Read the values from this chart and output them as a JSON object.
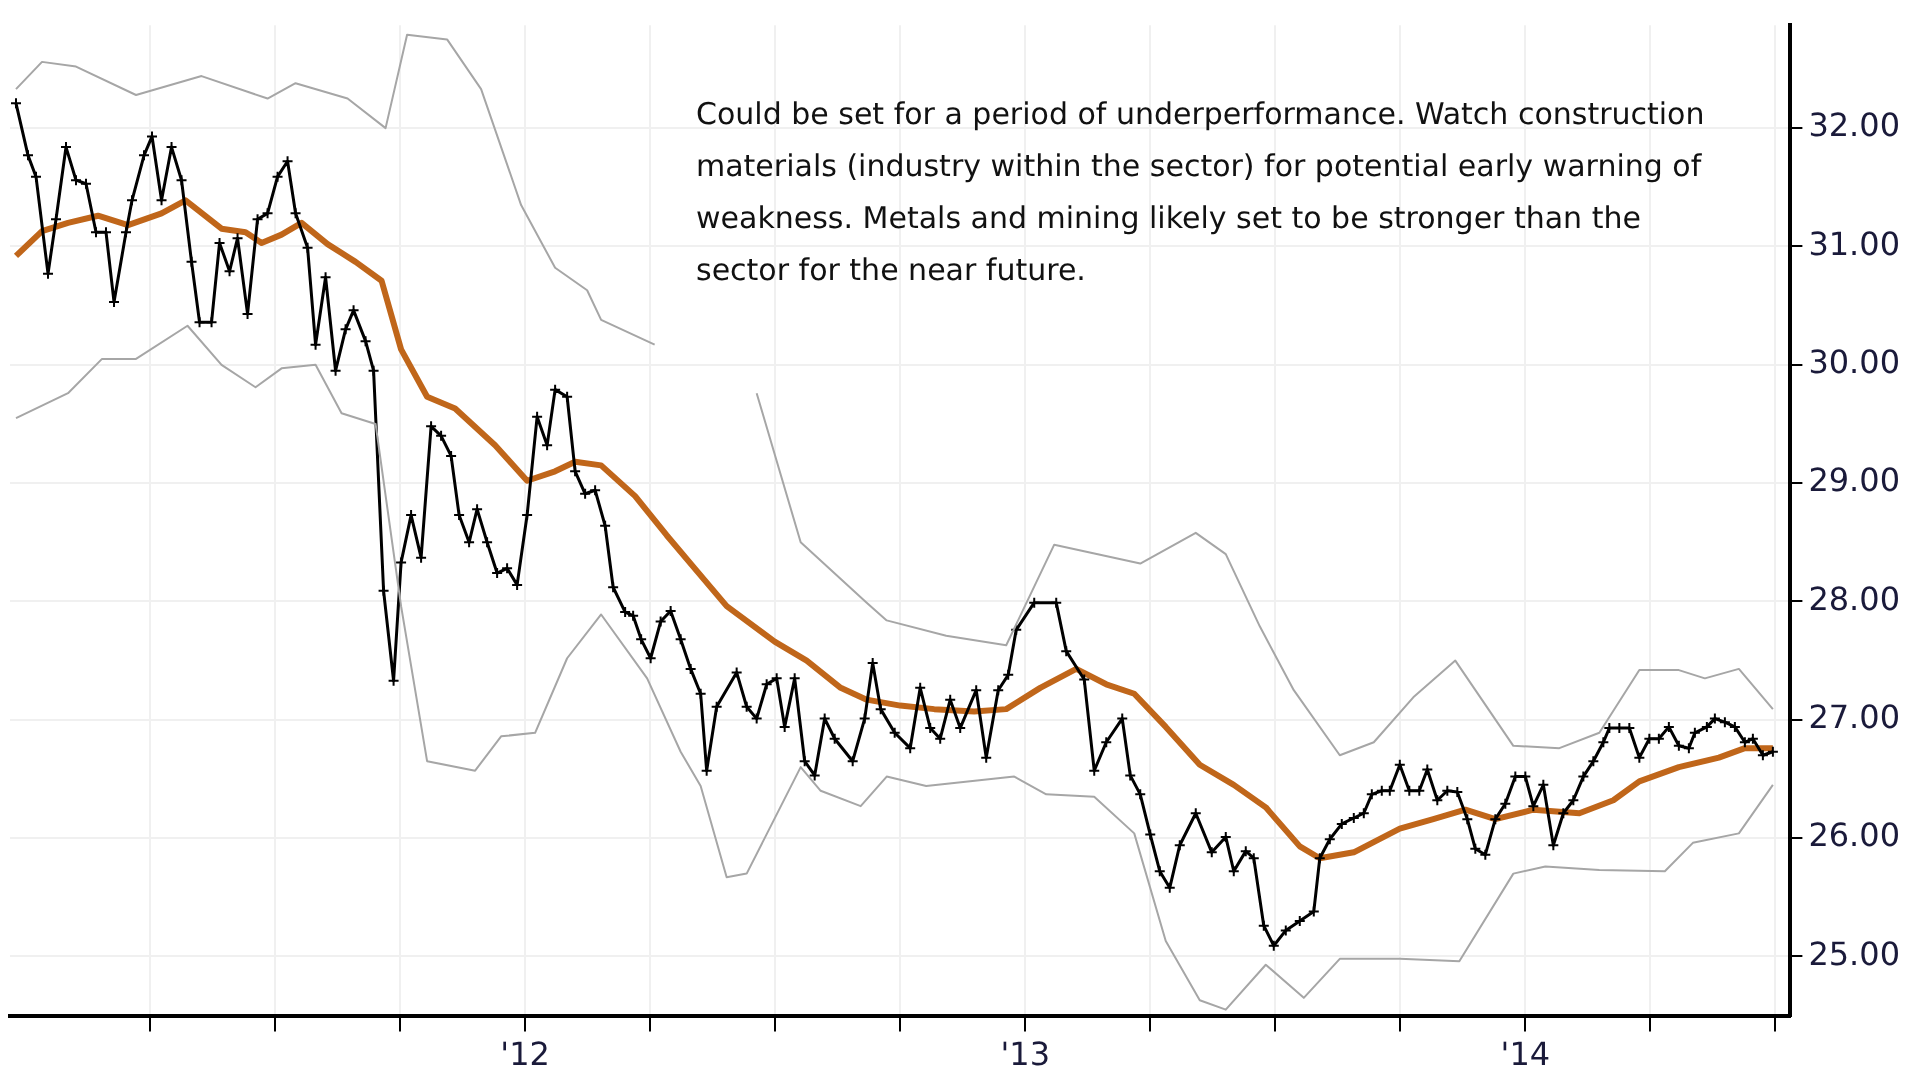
{
  "chart_data": {
    "type": "line",
    "annotations": [
      "Could be set for a period of underperformance. Watch construction materials (industry within the sector) for potential early warning of weakness. Metals and mining likely set to be stronger than the sector for the near future."
    ],
    "series": [
      {
        "type": "line",
        "color": "#a6a6a6",
        "marker": "none",
        "x": [
          2010.982,
          2011.034,
          2011.102,
          2011.222,
          2011.353,
          2011.485,
          2011.541,
          2011.645,
          2011.721,
          2011.764,
          2011.844,
          2011.912,
          2011.992,
          2012.06,
          2012.124,
          2012.152,
          2012.259,
          2012.351,
          2012.463,
          2012.551,
          2012.683,
          2012.723,
          2012.842,
          2012.962,
          2013.058,
          2013.23,
          2013.341,
          2013.401,
          2013.469,
          2013.537,
          2013.629,
          2013.697,
          2013.776,
          2013.86,
          2013.976,
          2014.068,
          2014.148,
          2014.228,
          2014.307,
          2014.359,
          2014.427,
          2014.495
        ],
        "values": [
          32.33,
          32.56,
          32.52,
          32.28,
          32.44,
          32.25,
          32.38,
          32.25,
          32.0,
          32.79,
          32.75,
          32.33,
          31.35,
          30.82,
          30.63,
          30.38,
          30.17,
          null,
          29.76,
          28.5,
          27.99,
          27.84,
          27.71,
          27.63,
          28.48,
          28.32,
          28.58,
          28.4,
          27.79,
          27.25,
          26.7,
          26.81,
          27.19,
          27.5,
          26.78,
          26.76,
          26.89,
          27.42,
          27.42,
          27.35,
          27.43,
          27.09
        ]
      },
      {
        "type": "line",
        "color": "#a6a6a6",
        "marker": "none",
        "x": [
          2010.982,
          2011.086,
          2011.154,
          2011.222,
          2011.325,
          2011.393,
          2011.461,
          2011.513,
          2011.581,
          2011.633,
          2011.701,
          2011.752,
          2011.804,
          2011.9,
          2011.952,
          2012.02,
          2012.084,
          2012.152,
          2012.244,
          2012.311,
          2012.351,
          2012.403,
          2012.443,
          2012.551,
          2012.591,
          2012.671,
          2012.723,
          2012.802,
          2012.978,
          2013.042,
          2013.138,
          2013.218,
          2013.281,
          2013.349,
          2013.401,
          2013.481,
          2013.557,
          2013.629,
          2013.749,
          2013.868,
          2013.976,
          2014.04,
          2014.148,
          2014.279,
          2014.335,
          2014.427,
          2014.495
        ],
        "values": [
          29.55,
          29.76,
          30.05,
          30.05,
          30.33,
          30.0,
          29.81,
          29.97,
          30.0,
          29.59,
          29.5,
          27.96,
          26.65,
          26.57,
          26.86,
          26.89,
          27.52,
          27.89,
          27.35,
          26.73,
          26.44,
          25.67,
          25.7,
          26.6,
          26.4,
          26.27,
          26.52,
          26.44,
          26.52,
          26.37,
          26.35,
          26.04,
          25.13,
          24.63,
          24.55,
          24.93,
          24.65,
          24.98,
          24.98,
          24.96,
          25.7,
          25.76,
          25.73,
          25.72,
          25.96,
          26.04,
          26.45
        ]
      },
      {
        "type": "line",
        "color": "#000000",
        "marker": "cross",
        "x": [
          2010.982,
          2011.006,
          2011.022,
          2011.046,
          2011.062,
          2011.082,
          2011.102,
          2011.122,
          2011.142,
          2011.162,
          2011.178,
          2011.202,
          2011.214,
          2011.238,
          2011.254,
          2011.273,
          2011.293,
          2011.313,
          2011.333,
          2011.349,
          2011.373,
          2011.389,
          2011.409,
          2011.425,
          2011.445,
          2011.465,
          2011.485,
          2011.505,
          2011.525,
          2011.541,
          2011.565,
          2011.581,
          2011.601,
          2011.621,
          2011.641,
          2011.657,
          2011.681,
          2011.697,
          2011.717,
          2011.737,
          2011.752,
          2011.772,
          2011.792,
          2011.812,
          2011.832,
          2011.852,
          2011.868,
          2011.888,
          2011.904,
          2011.924,
          2011.944,
          2011.964,
          2011.984,
          2012.004,
          2012.024,
          2012.044,
          2012.06,
          2012.084,
          2012.1,
          2012.12,
          2012.14,
          2012.16,
          2012.176,
          2012.2,
          2012.216,
          2012.232,
          2012.251,
          2012.271,
          2012.291,
          2012.311,
          2012.331,
          2012.351,
          2012.363,
          2012.383,
          2012.423,
          2012.443,
          2012.463,
          2012.483,
          2012.503,
          2012.519,
          2012.539,
          2012.559,
          2012.579,
          2012.599,
          2012.619,
          2012.655,
          2012.679,
          2012.695,
          2012.711,
          2012.739,
          2012.77,
          2012.79,
          2012.81,
          2012.83,
          2012.85,
          2012.87,
          2012.902,
          2012.922,
          2012.946,
          2012.966,
          2012.982,
          2013.018,
          2013.062,
          2013.082,
          2013.118,
          2013.138,
          2013.162,
          2013.194,
          2013.21,
          2013.23,
          2013.25,
          2013.269,
          2013.289,
          2013.309,
          2013.341,
          2013.373,
          2013.401,
          2013.417,
          2013.441,
          2013.457,
          2013.477,
          2013.497,
          2013.521,
          2013.549,
          2013.577,
          2013.589,
          2013.609,
          2013.633,
          2013.657,
          2013.677,
          2013.693,
          2013.713,
          2013.729,
          2013.749,
          2013.768,
          2013.788,
          2013.804,
          2013.824,
          2013.844,
          2013.864,
          2013.884,
          2013.9,
          2013.92,
          2013.94,
          2013.96,
          2013.98,
          2014.0,
          2014.016,
          2014.036,
          2014.056,
          2014.076,
          2014.096,
          2014.116,
          2014.136,
          2014.156,
          2014.168,
          2014.188,
          2014.208,
          2014.228,
          2014.248,
          2014.267,
          2014.287,
          2014.307,
          2014.327,
          2014.339,
          2014.363,
          2014.379,
          2014.399,
          2014.419,
          2014.439,
          2014.455,
          2014.475,
          2014.495
        ],
        "values": [
          32.21,
          31.77,
          31.59,
          30.77,
          31.23,
          31.84,
          31.56,
          31.53,
          31.12,
          31.12,
          30.53,
          31.12,
          31.39,
          31.77,
          31.93,
          31.39,
          31.84,
          31.56,
          30.87,
          30.36,
          30.36,
          31.03,
          30.79,
          31.07,
          30.43,
          31.23,
          31.28,
          31.59,
          31.72,
          31.28,
          30.99,
          30.17,
          30.74,
          29.95,
          30.3,
          30.46,
          30.2,
          29.95,
          28.09,
          27.33,
          28.33,
          28.73,
          28.37,
          29.48,
          29.4,
          29.23,
          28.73,
          28.5,
          28.78,
          28.5,
          28.24,
          28.28,
          28.14,
          28.73,
          29.56,
          29.32,
          29.79,
          29.73,
          29.1,
          28.91,
          28.94,
          28.64,
          28.12,
          27.91,
          27.88,
          27.68,
          27.52,
          27.83,
          27.92,
          27.68,
          27.43,
          27.22,
          26.57,
          27.11,
          27.4,
          27.11,
          27.01,
          27.3,
          27.35,
          26.94,
          27.35,
          26.65,
          26.53,
          27.01,
          26.84,
          26.65,
          27.01,
          27.48,
          27.09,
          26.89,
          26.76,
          27.27,
          26.93,
          26.84,
          27.17,
          26.93,
          27.25,
          26.68,
          27.25,
          27.38,
          27.76,
          27.99,
          27.99,
          27.58,
          27.34,
          26.57,
          26.81,
          27.01,
          26.53,
          26.37,
          26.03,
          25.72,
          25.58,
          25.94,
          26.21,
          25.88,
          26.01,
          25.72,
          25.89,
          25.83,
          25.26,
          25.09,
          25.22,
          25.3,
          25.38,
          25.83,
          25.99,
          26.12,
          26.17,
          26.21,
          26.37,
          26.4,
          26.4,
          26.62,
          26.4,
          26.4,
          26.58,
          26.32,
          26.4,
          26.39,
          26.16,
          25.91,
          25.86,
          26.16,
          26.29,
          26.52,
          26.52,
          26.27,
          26.45,
          25.94,
          26.21,
          26.32,
          26.52,
          26.65,
          26.81,
          26.93,
          26.93,
          26.93,
          26.68,
          26.84,
          26.84,
          26.94,
          26.78,
          26.76,
          26.89,
          26.94,
          27.01,
          26.98,
          26.94,
          26.81,
          26.84,
          26.7,
          26.73
        ]
      },
      {
        "type": "line",
        "color": "#c0661a",
        "marker": "none",
        "x": [
          2010.982,
          2011.034,
          2011.086,
          2011.146,
          2011.206,
          2011.273,
          2011.321,
          2011.393,
          2011.441,
          2011.473,
          2011.513,
          2011.553,
          2011.605,
          2011.661,
          2011.713,
          2011.752,
          2011.804,
          2011.86,
          2011.94,
          2012.004,
          2012.06,
          2012.1,
          2012.152,
          2012.22,
          2012.283,
          2012.339,
          2012.403,
          2012.499,
          2012.563,
          2012.631,
          2012.683,
          2012.75,
          2012.818,
          2012.898,
          2012.962,
          2013.03,
          2013.102,
          2013.162,
          2013.218,
          2013.281,
          2013.349,
          2013.417,
          2013.481,
          2013.549,
          2013.589,
          2013.657,
          2013.749,
          2013.816,
          2013.88,
          2013.94,
          2014.016,
          2014.108,
          2014.176,
          2014.228,
          2014.307,
          2014.387,
          2014.439,
          2014.495
        ],
        "values": [
          30.92,
          31.13,
          31.2,
          31.26,
          31.18,
          31.28,
          31.39,
          31.15,
          31.12,
          31.03,
          31.1,
          31.2,
          31.02,
          30.87,
          30.71,
          30.13,
          29.73,
          29.63,
          29.32,
          29.02,
          29.1,
          29.18,
          29.15,
          28.89,
          28.56,
          28.28,
          27.96,
          27.66,
          27.5,
          27.27,
          27.17,
          27.12,
          27.09,
          27.07,
          27.09,
          27.27,
          27.43,
          27.3,
          27.22,
          26.94,
          26.62,
          26.45,
          26.26,
          25.93,
          25.83,
          25.88,
          26.08,
          26.16,
          26.24,
          26.16,
          26.24,
          26.21,
          26.32,
          26.48,
          26.6,
          26.68,
          26.76,
          26.76
        ]
      }
    ],
    "xlim": [
      2010.97,
      2014.53
    ],
    "xticks": [
      {
        "value": 2011.25,
        "label": null
      },
      {
        "value": 2011.5,
        "label": null
      },
      {
        "value": 2011.75,
        "label": null
      },
      {
        "value": 2012,
        "label": "'12"
      },
      {
        "value": 2012.25,
        "label": null
      },
      {
        "value": 2012.5,
        "label": null
      },
      {
        "value": 2012.75,
        "label": null
      },
      {
        "value": 2013,
        "label": "'13"
      },
      {
        "value": 2013.25,
        "label": null
      },
      {
        "value": 2013.5,
        "label": null
      },
      {
        "value": 2013.75,
        "label": null
      },
      {
        "value": 2014,
        "label": "'14"
      },
      {
        "value": 2014.25,
        "label": null
      },
      {
        "value": 2014.5,
        "label": null
      }
    ],
    "ylim": [
      24.5,
      32.87
    ],
    "yticks": [
      {
        "value": 25,
        "label": "25.00"
      },
      {
        "value": 26,
        "label": "26.00"
      },
      {
        "value": 27,
        "label": "27.00"
      },
      {
        "value": 28,
        "label": "28.00"
      },
      {
        "value": 29,
        "label": "29.00"
      },
      {
        "value": 30,
        "label": "30.00"
      },
      {
        "value": 31,
        "label": "31.00"
      },
      {
        "value": 32,
        "label": "32.00"
      }
    ],
    "grid": true
  }
}
